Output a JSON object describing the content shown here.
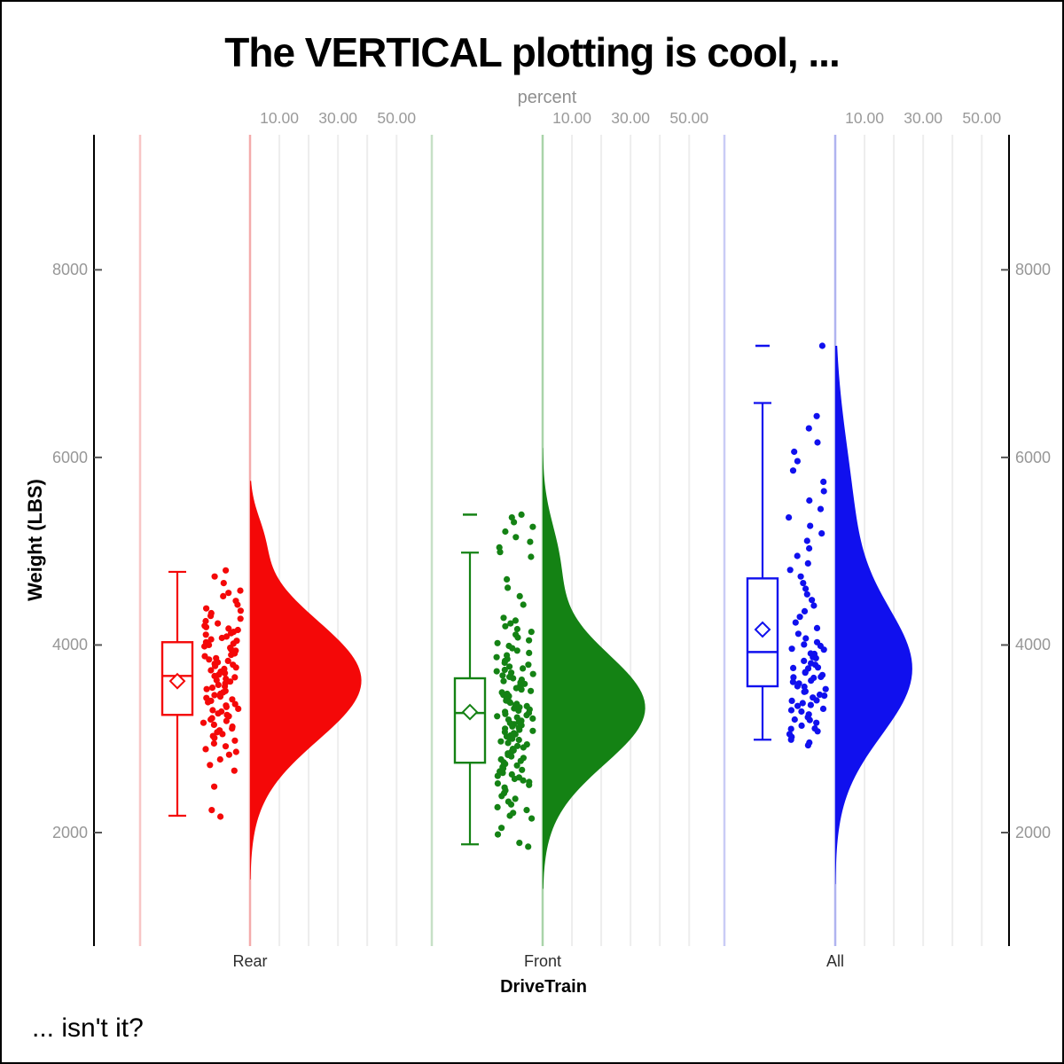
{
  "title": "The VERTICAL plotting is cool, ...",
  "footnote": "... isn't it?",
  "chart_data": {
    "type": "raincloud (vertical half-violin + box plot + jittered points)",
    "x_axis": {
      "label": "DriveTrain",
      "categories": [
        "Rear",
        "Front",
        "All"
      ]
    },
    "y_axis": {
      "label": "Weight (LBS)",
      "ticks": [
        2000,
        4000,
        6000,
        8000
      ],
      "range": [
        790,
        9440
      ]
    },
    "top_axis": {
      "label": "percent",
      "tick_labels": [
        "10.00",
        "30.00",
        "50.00"
      ],
      "tick_values": [
        10,
        30,
        50
      ],
      "gridline_values": [
        10,
        20,
        30,
        40,
        50
      ]
    },
    "groups": [
      {
        "name": "Rear",
        "color": "#f40808",
        "boundary_line_color": "#f8c6c6",
        "baseline_color": "#f4abab",
        "box": {
          "whisker_low": 2180,
          "q1": 3255,
          "median": 3670,
          "q3": 4030,
          "whisker_high": 4780,
          "mean": 3615,
          "outliers": []
        },
        "density_mixture": [
          {
            "center": 3620,
            "amp": 38,
            "sd": 640
          },
          {
            "center": 5150,
            "amp": 3,
            "sd": 260
          }
        ],
        "density_range": [
          5750,
          1500
        ],
        "jitter_seed": 7,
        "points": [
          4795,
          4730,
          4660,
          4580,
          4555,
          4520,
          4470,
          4430,
          4390,
          4365,
          4340,
          4310,
          4280,
          4255,
          4230,
          4205,
          4190,
          4175,
          4160,
          4140,
          4125,
          4110,
          4090,
          4075,
          4060,
          4045,
          4030,
          4015,
          4000,
          3985,
          3970,
          3955,
          3940,
          3925,
          3910,
          3895,
          3880,
          3860,
          3845,
          3830,
          3815,
          3800,
          3790,
          3775,
          3760,
          3745,
          3730,
          3715,
          3700,
          3685,
          3670,
          3655,
          3640,
          3625,
          3610,
          3590,
          3575,
          3560,
          3545,
          3530,
          3510,
          3495,
          3480,
          3465,
          3450,
          3435,
          3420,
          3405,
          3390,
          3370,
          3355,
          3340,
          3320,
          3305,
          3290,
          3270,
          3255,
          3240,
          3220,
          3205,
          3190,
          3170,
          3150,
          3130,
          3110,
          3090,
          3070,
          3050,
          3030,
          3010,
          2980,
          2950,
          2920,
          2890,
          2860,
          2830,
          2780,
          2720,
          2660,
          2490,
          2240,
          2170
        ]
      },
      {
        "name": "Front",
        "color": "#148214",
        "boundary_line_color": "#c6e0c6",
        "baseline_color": "#a9d4a9",
        "box": {
          "whisker_low": 1875,
          "q1": 2745,
          "median": 3275,
          "q3": 3645,
          "whisker_high": 4985,
          "mean": 3285,
          "outliers": [
            5390
          ]
        },
        "density_mixture": [
          {
            "center": 3330,
            "amp": 35,
            "sd": 600
          },
          {
            "center": 4900,
            "amp": 5,
            "sd": 420
          }
        ],
        "density_range": [
          6100,
          1400
        ],
        "jitter_seed": 13,
        "points": [
          5390,
          5360,
          5310,
          5260,
          5210,
          5150,
          5100,
          5040,
          4990,
          4940,
          4700,
          4610,
          4520,
          4430,
          4290,
          4260,
          4230,
          4200,
          4170,
          4140,
          4110,
          4080,
          4050,
          4020,
          3990,
          3965,
          3940,
          3915,
          3890,
          3870,
          3850,
          3830,
          3810,
          3790,
          3770,
          3750,
          3735,
          3720,
          3705,
          3690,
          3675,
          3660,
          3645,
          3630,
          3615,
          3600,
          3585,
          3570,
          3555,
          3540,
          3525,
          3510,
          3495,
          3480,
          3468,
          3456,
          3444,
          3432,
          3420,
          3408,
          3396,
          3384,
          3372,
          3360,
          3348,
          3336,
          3324,
          3312,
          3300,
          3288,
          3276,
          3264,
          3252,
          3240,
          3228,
          3216,
          3204,
          3192,
          3180,
          3168,
          3156,
          3144,
          3132,
          3120,
          3108,
          3096,
          3084,
          3072,
          3060,
          3048,
          3036,
          3024,
          3012,
          3000,
          2988,
          2972,
          2956,
          2940,
          2924,
          2908,
          2892,
          2876,
          2860,
          2844,
          2828,
          2812,
          2796,
          2780,
          2764,
          2748,
          2732,
          2716,
          2700,
          2684,
          2668,
          2652,
          2636,
          2620,
          2604,
          2588,
          2572,
          2556,
          2540,
          2524,
          2508,
          2480,
          2450,
          2420,
          2390,
          2360,
          2330,
          2300,
          2270,
          2240,
          2210,
          2180,
          2150,
          2050,
          1980,
          1890,
          1850
        ]
      },
      {
        "name": "All",
        "color": "#1010ee",
        "boundary_line_color": "#c9ccf6",
        "baseline_color": "#b0b4f0",
        "box": {
          "whisker_low": 2990,
          "q1": 3560,
          "median": 3925,
          "q3": 4710,
          "whisker_high": 6580,
          "mean": 4165,
          "outliers": [
            7190
          ]
        },
        "density_mixture": [
          {
            "center": 3700,
            "amp": 25,
            "sd": 680
          },
          {
            "center": 5300,
            "amp": 6,
            "sd": 900
          }
        ],
        "density_range": [
          7190,
          1450
        ],
        "jitter_seed": 29,
        "points": [
          7190,
          6440,
          6310,
          6160,
          6060,
          5960,
          5860,
          5740,
          5640,
          5540,
          5450,
          5360,
          5270,
          5190,
          5110,
          5030,
          4950,
          4870,
          4800,
          4730,
          4660,
          4600,
          4540,
          4480,
          4420,
          4360,
          4300,
          4240,
          4180,
          4120,
          4070,
          4030,
          4005,
          3990,
          3960,
          3950,
          3910,
          3905,
          3870,
          3860,
          3830,
          3805,
          3790,
          3760,
          3755,
          3750,
          3710,
          3705,
          3680,
          3660,
          3655,
          3650,
          3620,
          3605,
          3590,
          3560,
          3555,
          3530,
          3505,
          3500,
          3470,
          3460,
          3440,
          3410,
          3405,
          3380,
          3360,
          3350,
          3320,
          3305,
          3290,
          3260,
          3230,
          3205,
          3200,
          3170,
          3140,
          3110,
          3105,
          3080,
          3050,
          3020,
          2990,
          2960,
          2930
        ]
      }
    ]
  },
  "style": {
    "background": "#ffffff",
    "axis_color": "#000000",
    "tick_mark_color": "#555555",
    "grid_color": "#ededed",
    "tick_label_color": "#979797",
    "category_label_color": "#2e2e2e"
  }
}
